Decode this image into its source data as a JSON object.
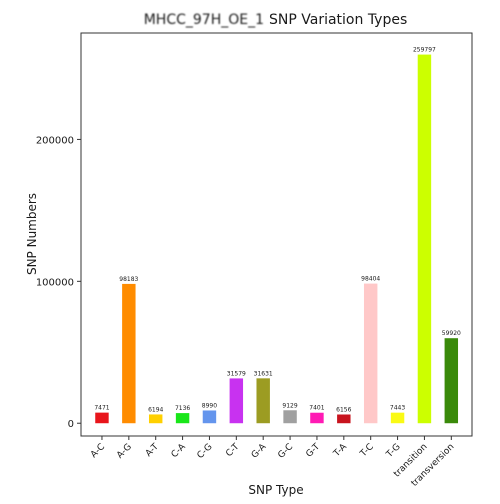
{
  "chart_data": {
    "type": "bar",
    "title_prefix": "MHCC_97H_OE_1",
    "title": "SNP Variation Types",
    "xlabel": "SNP Type",
    "ylabel": "SNP Numbers",
    "ylim": [
      -9000,
      275000
    ],
    "yticks": [
      0,
      100000,
      200000
    ],
    "ytick_labels": [
      "0",
      "100000",
      "200000"
    ],
    "grid": false,
    "legend": "none",
    "categories": [
      "A-C",
      "A-G",
      "A-T",
      "C-A",
      "C-G",
      "C-T",
      "G-A",
      "G-C",
      "G-T",
      "T-A",
      "T-C",
      "T-G",
      "transition",
      "transversion"
    ],
    "values": [
      7471,
      98183,
      6194,
      7136,
      8990,
      31579,
      31631,
      9129,
      7401,
      6156,
      98404,
      7443,
      259797,
      59920
    ],
    "colors": [
      "#e8151b",
      "#ff8c00",
      "#ffd000",
      "#19e619",
      "#6495ed",
      "#c832f0",
      "#9c9c22",
      "#a0a0a0",
      "#ff1ab4",
      "#c8141e",
      "#ffc8c8",
      "#fafa14",
      "#ccff00",
      "#3a8a0a"
    ]
  }
}
